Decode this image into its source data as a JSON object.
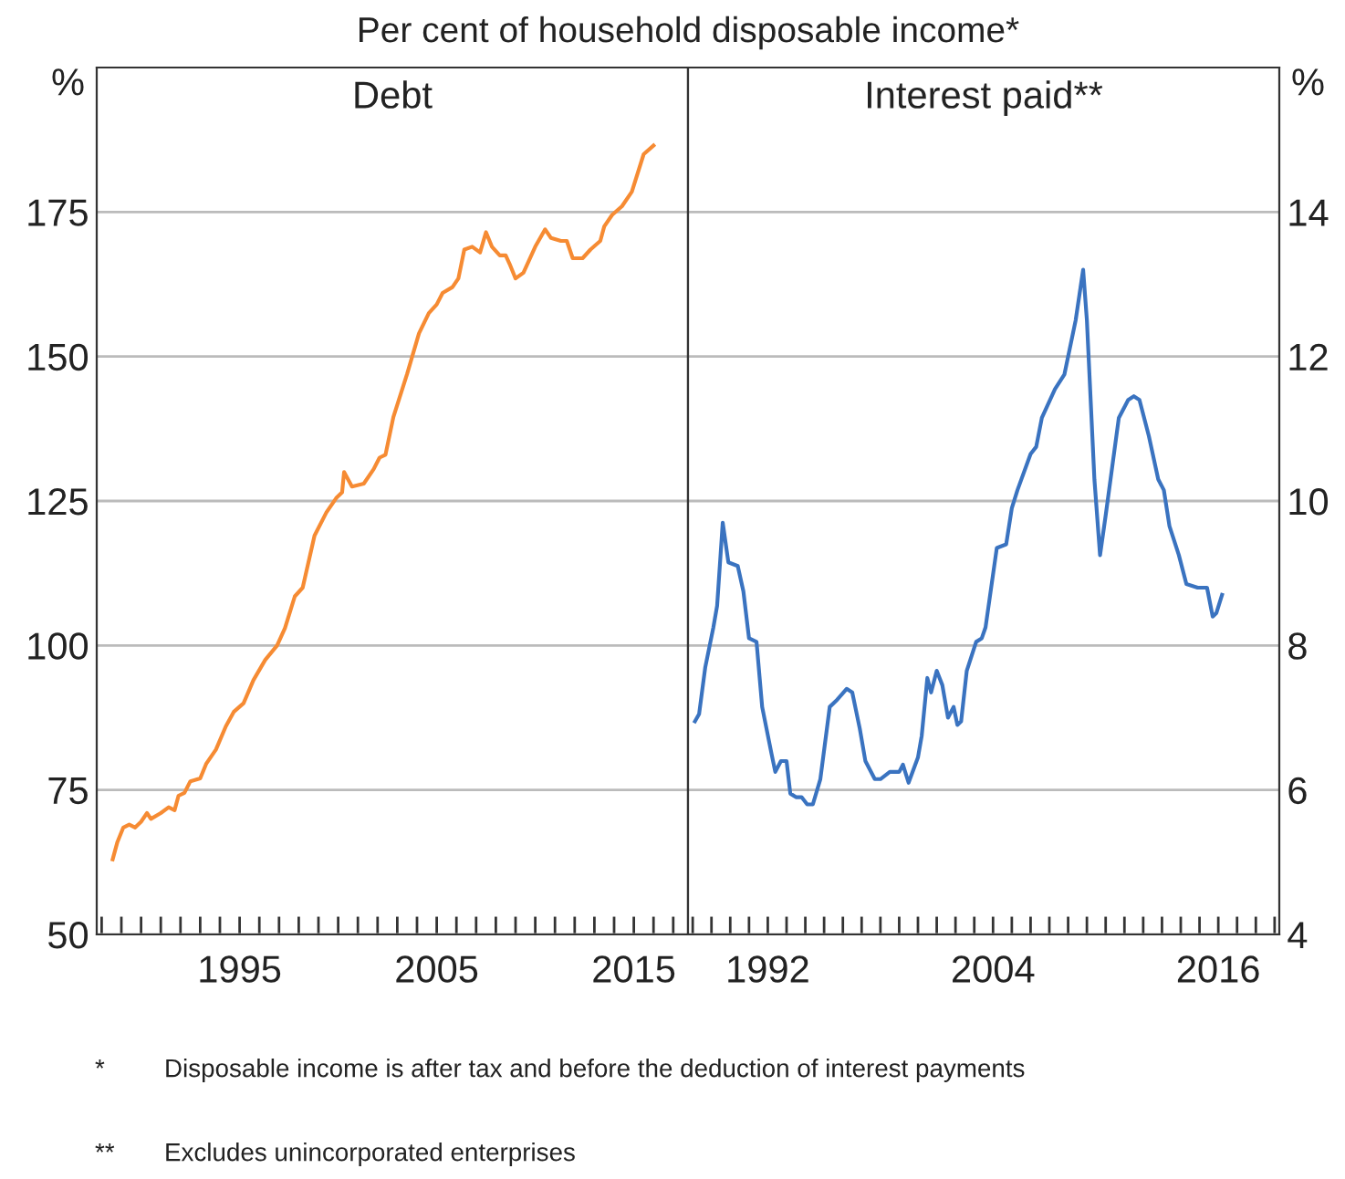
{
  "chart_data": [
    {
      "type": "line",
      "title": "Debt",
      "subtitle": "Per cent of household disposable income*",
      "ylabel": "%",
      "series": [
        {
          "color": "#f68b33",
          "x": [
            1988.56,
            1988.8,
            1989.1,
            1989.4,
            1989.7,
            1990.0,
            1990.3,
            1990.5,
            1991.0,
            1991.4,
            1991.7,
            1991.9,
            1992.2,
            1992.5,
            1993.0,
            1993.3,
            1993.8,
            1994.3,
            1994.7,
            1995.2,
            1995.7,
            1996.3,
            1996.9,
            1997.3,
            1997.8,
            1998.2,
            1998.8,
            1999.4,
            1999.9,
            2000.2,
            2000.3,
            2000.7,
            2001.3,
            2001.8,
            2002.1,
            2002.4,
            2002.8,
            2003.5,
            2004.1,
            2004.6,
            2005.0,
            2005.3,
            2005.8,
            2006.1,
            2006.4,
            2006.8,
            2007.2,
            2007.5,
            2007.8,
            2008.2,
            2008.5,
            2008.7,
            2009.0,
            2009.4,
            2010.0,
            2010.5,
            2010.8,
            2011.3,
            2011.6,
            2011.9,
            2012.4,
            2012.8,
            2013.3,
            2013.5,
            2013.9,
            2014.4,
            2014.9,
            2015.5,
            2016.0
          ],
          "values": [
            63,
            66,
            68.5,
            69,
            68.5,
            69.5,
            71,
            70,
            71,
            72,
            71.5,
            74,
            74.5,
            76.5,
            77,
            79.5,
            82,
            86,
            88.5,
            90,
            94,
            97.5,
            100,
            103,
            108.5,
            110,
            119,
            123,
            125.5,
            126.5,
            130,
            127.5,
            128,
            130.5,
            132.5,
            133,
            139.5,
            147,
            154,
            157.5,
            159,
            161,
            162,
            163.5,
            168.5,
            169,
            168,
            171.5,
            169,
            167.5,
            167.5,
            166,
            163.5,
            164.5,
            169,
            172,
            170.5,
            170,
            170,
            167,
            167,
            168.5,
            170,
            172.5,
            174.5,
            176,
            178.5,
            185,
            186.5
          ]
        }
      ],
      "xlim": [
        1987.75,
        2017.75
      ],
      "xticks": [
        {
          "value": 1988,
          "label": null
        },
        {
          "value": 1989,
          "label": null
        },
        {
          "value": 1990,
          "label": null
        },
        {
          "value": 1991,
          "label": null
        },
        {
          "value": 1992,
          "label": null
        },
        {
          "value": 1993,
          "label": null
        },
        {
          "value": 1994,
          "label": null
        },
        1995,
        {
          "value": 1996,
          "label": null
        },
        {
          "value": 1997,
          "label": null
        },
        {
          "value": 1998,
          "label": null
        },
        {
          "value": 1999,
          "label": null
        },
        {
          "value": 2000,
          "label": null
        },
        {
          "value": 2001,
          "label": null
        },
        {
          "value": 2002,
          "label": null
        },
        {
          "value": 2003,
          "label": null
        },
        {
          "value": 2004,
          "label": null
        },
        2005,
        {
          "value": 2006,
          "label": null
        },
        {
          "value": 2007,
          "label": null
        },
        {
          "value": 2008,
          "label": null
        },
        {
          "value": 2009,
          "label": null
        },
        {
          "value": 2010,
          "label": null
        },
        {
          "value": 2011,
          "label": null
        },
        {
          "value": 2012,
          "label": null
        },
        {
          "value": 2013,
          "label": null
        },
        {
          "value": 2014,
          "label": null
        },
        2015,
        {
          "value": 2016,
          "label": null
        },
        {
          "value": 2017,
          "label": null
        }
      ],
      "ylim": [
        50,
        200
      ],
      "yticks": [
        50,
        75,
        100,
        125,
        150,
        175
      ],
      "grid": "y",
      "legend": false,
      "annotations": [
        "* Disposable income is after tax and before the deduction of interest payments",
        "** Excludes unincorporated enterprises"
      ]
    },
    {
      "type": "line",
      "title": "Interest paid**",
      "ylabel": "%",
      "series": [
        {
          "color": "#3a73c0",
          "x": [
            1988.12,
            1988.34,
            1988.67,
            1989.1,
            1989.3,
            1989.6,
            1989.9,
            1990.4,
            1990.7,
            1991.0,
            1991.4,
            1991.7,
            1992.2,
            1992.4,
            1992.7,
            1993.0,
            1993.2,
            1993.5,
            1993.8,
            1994.1,
            1994.4,
            1994.8,
            1995.3,
            1995.7,
            1996.2,
            1996.5,
            1996.9,
            1997.2,
            1997.7,
            1998.0,
            1998.5,
            1999.0,
            1999.2,
            1999.5,
            2000.0,
            2000.2,
            2000.5,
            2000.7,
            2001.0,
            2001.3,
            2001.6,
            2001.9,
            2002.1,
            2002.3,
            2002.6,
            2003.1,
            2003.4,
            2003.6,
            2004.2,
            2004.7,
            2005.0,
            2005.3,
            2006.0,
            2006.3,
            2006.6,
            2007.3,
            2007.8,
            2008.4,
            2008.8,
            2009.0,
            2009.4,
            2009.7,
            2010.0,
            2010.7,
            2011.2,
            2011.5,
            2011.8,
            2012.3,
            2012.8,
            2013.1,
            2013.4,
            2013.9,
            2014.3,
            2014.9,
            2015.4,
            2015.7,
            2015.9,
            2016.2
          ],
          "values": [
            6.95,
            7.05,
            7.7,
            8.25,
            8.55,
            9.7,
            9.15,
            9.1,
            8.75,
            8.1,
            8.05,
            7.15,
            6.5,
            6.25,
            6.4,
            6.4,
            5.95,
            5.9,
            5.9,
            5.8,
            5.8,
            6.15,
            7.15,
            7.25,
            7.4,
            7.35,
            6.85,
            6.4,
            6.15,
            6.15,
            6.25,
            6.25,
            6.35,
            6.1,
            6.45,
            6.75,
            7.55,
            7.35,
            7.65,
            7.45,
            7.0,
            7.15,
            6.9,
            6.95,
            7.65,
            8.05,
            8.1,
            8.25,
            9.35,
            9.4,
            9.9,
            10.15,
            10.65,
            10.75,
            11.15,
            11.55,
            11.75,
            12.5,
            13.2,
            12.5,
            10.3,
            9.25,
            9.8,
            11.15,
            11.4,
            11.45,
            11.4,
            10.9,
            10.3,
            10.15,
            9.65,
            9.25,
            8.85,
            8.8,
            8.8,
            8.4,
            8.45,
            8.7
          ]
        }
      ],
      "xlim": [
        1987.75,
        2019.25
      ],
      "xticks": [
        {
          "value": 1988,
          "label": null
        },
        {
          "value": 1989,
          "label": null
        },
        {
          "value": 1990,
          "label": null
        },
        {
          "value": 1991,
          "label": null
        },
        1992,
        {
          "value": 1993,
          "label": null
        },
        {
          "value": 1994,
          "label": null
        },
        {
          "value": 1995,
          "label": null
        },
        {
          "value": 1996,
          "label": null
        },
        {
          "value": 1997,
          "label": null
        },
        {
          "value": 1998,
          "label": null
        },
        {
          "value": 1999,
          "label": null
        },
        {
          "value": 2000,
          "label": null
        },
        {
          "value": 2001,
          "label": null
        },
        {
          "value": 2002,
          "label": null
        },
        {
          "value": 2003,
          "label": null
        },
        2004,
        {
          "value": 2005,
          "label": null
        },
        {
          "value": 2006,
          "label": null
        },
        {
          "value": 2007,
          "label": null
        },
        {
          "value": 2008,
          "label": null
        },
        {
          "value": 2009,
          "label": null
        },
        {
          "value": 2010,
          "label": null
        },
        {
          "value": 2011,
          "label": null
        },
        {
          "value": 2012,
          "label": null
        },
        {
          "value": 2013,
          "label": null
        },
        {
          "value": 2014,
          "label": null
        },
        {
          "value": 2015,
          "label": null
        },
        2016,
        {
          "value": 2017,
          "label": null
        },
        {
          "value": 2018,
          "label": null
        },
        {
          "value": 2019,
          "label": null
        }
      ],
      "ylim": [
        4,
        16
      ],
      "yticks": [
        4,
        6,
        8,
        10,
        12,
        14
      ],
      "grid": "y",
      "legend": false
    }
  ]
}
